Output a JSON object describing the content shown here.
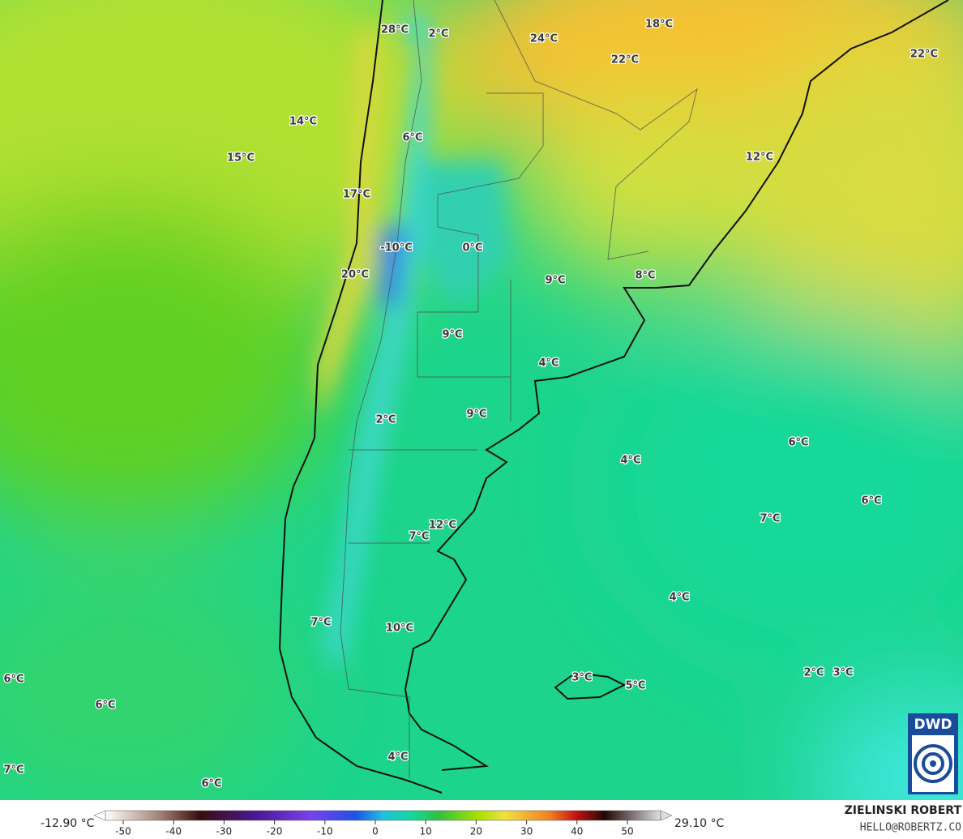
{
  "map_labels": [
    "28°C",
    "2°C",
    "24°C",
    "18°C",
    "22°C",
    "22°C",
    "14°C",
    "15°C",
    "6°C",
    "12°C",
    "17°C",
    "-10°C",
    "0°C",
    "20°C",
    "9°C",
    "8°C",
    "9°C",
    "4°C",
    "2°C",
    "9°C",
    "6°C",
    "4°C",
    "12°C",
    "7°C",
    "7°C",
    "6°C",
    "4°C",
    "7°C",
    "10°C",
    "2°C",
    "3°C",
    "3°C",
    "5°C",
    "6°C",
    "6°C",
    "7°C",
    "6°C",
    "4°C"
  ],
  "colorbar": {
    "min_label": "-12.90 °C",
    "max_label": "29.10 °C",
    "ticks": [
      -50,
      -40,
      -30,
      -20,
      -10,
      0,
      10,
      20,
      30,
      40,
      50
    ]
  },
  "credit": {
    "author": "ZIELINSKI ROBERT",
    "email": "HELLO@ROBERTZ.CO",
    "logo": "DWD"
  }
}
